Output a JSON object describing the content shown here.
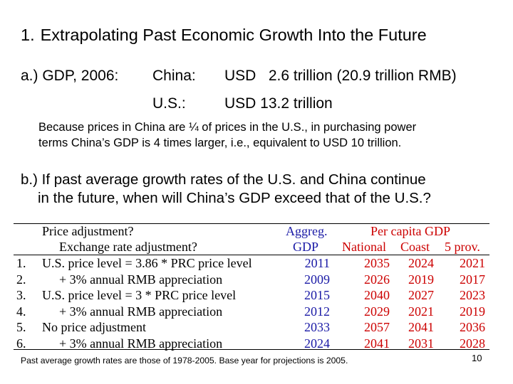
{
  "slide": {
    "title_number": "1.",
    "title": "Extrapolating Past Economic Growth Into the Future",
    "section_a": {
      "label": "a.) GDP, 2006:",
      "china_label": "China:",
      "china_value": "USD   2.6 trillion (20.9 trillion RMB)",
      "us_label": "U.S.:",
      "us_value": "USD 13.2 trillion"
    },
    "ppp_note_line1": "Because prices in China are ¼ of prices in the U.S., in purchasing power",
    "ppp_note_line2": "terms China’s GDP is 4 times larger, i.e., equivalent to USD 10 trillion.",
    "section_b_line1": "b.) If past average growth rates of the U.S. and China continue",
    "section_b_line2": "in the future, when will China’s GDP exceed that of the U.S.?",
    "footnote": "Past average growth rates are those of 1978-2005. Base year for projections is 2005.",
    "page_number": "10"
  },
  "table": {
    "header": {
      "price_adjustment": "Price adjustment?",
      "exchange_rate_adjustment": "Exchange rate adjustment?",
      "aggreg_line1": "Aggreg.",
      "aggreg_line2": "GDP",
      "per_capita": "Per capita GDP",
      "national": "National",
      "coast": "Coast",
      "five_prov": "5 prov."
    },
    "rows": [
      {
        "num": "1.",
        "label": "U.S. price level = 3.86 * PRC price level",
        "aggregate": "2011",
        "national": "2035",
        "coast": "2024",
        "five_prov": "2021"
      },
      {
        "num": "2.",
        "label": "+ 3% annual RMB appreciation",
        "aggregate": "2009",
        "national": "2026",
        "coast": "2019",
        "five_prov": "2017"
      },
      {
        "num": "3.",
        "label": "U.S. price level = 3 * PRC price level",
        "aggregate": "2015",
        "national": "2040",
        "coast": "2027",
        "five_prov": "2023"
      },
      {
        "num": "4.",
        "label": "+ 3% annual RMB appreciation",
        "aggregate": "2012",
        "national": "2029",
        "coast": "2021",
        "five_prov": "2019"
      },
      {
        "num": "5.",
        "label": "No price adjustment",
        "aggregate": "2033",
        "national": "2057",
        "coast": "2041",
        "five_prov": "2036"
      },
      {
        "num": "6.",
        "label": "+ 3% annual RMB appreciation",
        "aggregate": "2024",
        "national": "2041",
        "coast": "2031",
        "five_prov": "2028"
      }
    ]
  },
  "colors": {
    "aggregate_text": "#1a1aa6",
    "per_capita_text": "#cc0000"
  }
}
